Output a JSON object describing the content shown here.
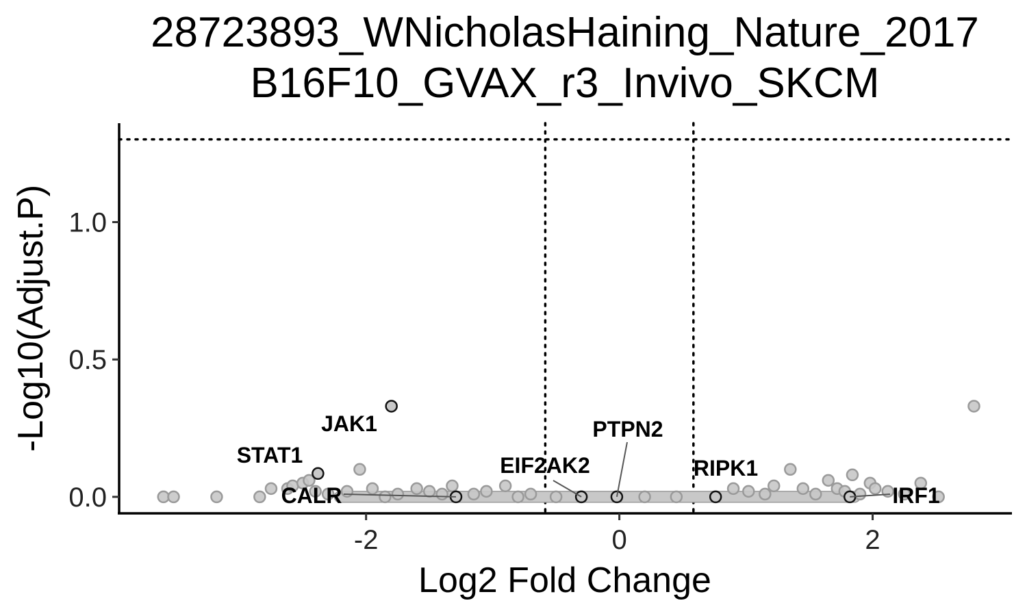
{
  "chart_data": {
    "type": "scatter",
    "title": "28723893_WNicholasHaining_Nature_2017",
    "subtitle": "B16F10_GVAX_r3_Invivo_SKCM",
    "xlabel": "Log2 Fold Change",
    "ylabel": "-Log10(Adjust.P)",
    "xlim": [
      -3.95,
      3.1
    ],
    "ylim": [
      -0.06,
      1.36
    ],
    "x_ticks": [
      -2,
      0,
      2
    ],
    "x_tick_labels": [
      "-2",
      "0",
      "2"
    ],
    "y_ticks": [
      0.0,
      0.5,
      1.0
    ],
    "y_tick_labels": [
      "0.0",
      "0.5",
      "1.0"
    ],
    "grid": false,
    "threshold_lines": {
      "x": [
        -0.585,
        0.585
      ],
      "y": 1.301
    },
    "colors": {
      "point_fill": "#c8c8c8",
      "point_stroke": "#9a9a9a",
      "highlight_stroke": "#111111",
      "axis": "#000000"
    },
    "points": [
      {
        "x": -3.6,
        "y": 0.0
      },
      {
        "x": -3.52,
        "y": 0.0
      },
      {
        "x": -3.18,
        "y": 0.0
      },
      {
        "x": -2.84,
        "y": 0.0
      },
      {
        "x": -2.75,
        "y": 0.03
      },
      {
        "x": -2.62,
        "y": 0.03
      },
      {
        "x": -2.58,
        "y": 0.04
      },
      {
        "x": -2.5,
        "y": 0.05
      },
      {
        "x": -2.45,
        "y": 0.06
      },
      {
        "x": -2.4,
        "y": 0.02
      },
      {
        "x": -2.3,
        "y": 0.01
      },
      {
        "x": -2.15,
        "y": 0.02
      },
      {
        "x": -2.05,
        "y": 0.1
      },
      {
        "x": -1.95,
        "y": 0.03
      },
      {
        "x": -1.85,
        "y": 0.0
      },
      {
        "x": -1.75,
        "y": 0.01
      },
      {
        "x": -1.6,
        "y": 0.03
      },
      {
        "x": -1.5,
        "y": 0.02
      },
      {
        "x": -1.4,
        "y": 0.01
      },
      {
        "x": -1.32,
        "y": 0.04
      },
      {
        "x": -1.15,
        "y": 0.01
      },
      {
        "x": -1.05,
        "y": 0.02
      },
      {
        "x": -0.9,
        "y": 0.04
      },
      {
        "x": -0.8,
        "y": 0.0
      },
      {
        "x": -0.7,
        "y": 0.01
      },
      {
        "x": -0.5,
        "y": 0.0
      },
      {
        "x": -0.3,
        "y": 0.0
      },
      {
        "x": 0.2,
        "y": 0.0
      },
      {
        "x": 0.45,
        "y": 0.0
      },
      {
        "x": 0.9,
        "y": 0.03
      },
      {
        "x": 1.02,
        "y": 0.02
      },
      {
        "x": 1.15,
        "y": 0.01
      },
      {
        "x": 1.22,
        "y": 0.04
      },
      {
        "x": 1.35,
        "y": 0.1
      },
      {
        "x": 1.45,
        "y": 0.03
      },
      {
        "x": 1.55,
        "y": 0.01
      },
      {
        "x": 1.65,
        "y": 0.06
      },
      {
        "x": 1.72,
        "y": 0.03
      },
      {
        "x": 1.78,
        "y": 0.02
      },
      {
        "x": 1.84,
        "y": 0.08
      },
      {
        "x": 1.9,
        "y": 0.01
      },
      {
        "x": 1.98,
        "y": 0.05
      },
      {
        "x": 2.02,
        "y": 0.03
      },
      {
        "x": 2.12,
        "y": 0.02
      },
      {
        "x": 2.25,
        "y": 0.01
      },
      {
        "x": 2.38,
        "y": 0.05
      },
      {
        "x": 2.52,
        "y": 0.0
      },
      {
        "x": 2.8,
        "y": 0.33
      }
    ],
    "baseline_band": [
      {
        "x_from": -2.25,
        "x_to": 1.9,
        "y": 0.0
      }
    ],
    "highlighted_genes": [
      {
        "name": "JAK1",
        "x": -1.8,
        "y": 0.33
      },
      {
        "name": "STAT1",
        "x": -2.38,
        "y": 0.085
      },
      {
        "name": "CALR",
        "x": -1.29,
        "y": 0.0
      },
      {
        "name": "EIF2AK2",
        "x": -0.3,
        "y": 0.0
      },
      {
        "name": "PTPN2",
        "x": -0.02,
        "y": 0.0
      },
      {
        "name": "RIPK1",
        "x": 0.76,
        "y": 0.0
      },
      {
        "name": "IRF1",
        "x": 1.82,
        "y": 0.0
      }
    ]
  }
}
